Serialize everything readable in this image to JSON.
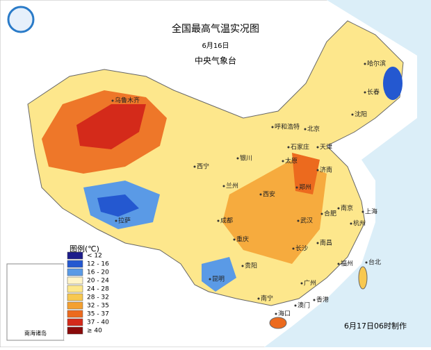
{
  "title": "全国最高气温实况图",
  "date": "6月16日",
  "source": "中央气象台",
  "legend": {
    "title": "图例(℃)",
    "items": [
      {
        "label": "< 12",
        "color": "#1c1c8a"
      },
      {
        "label": "12 - 16",
        "color": "#2458d0"
      },
      {
        "label": "16 - 20",
        "color": "#5a9ae6"
      },
      {
        "label": "20 - 24",
        "color": "#fff4c8"
      },
      {
        "label": "24 - 28",
        "color": "#fde78c"
      },
      {
        "label": "28 - 32",
        "color": "#f8c850"
      },
      {
        "label": "32 - 35",
        "color": "#f4a030"
      },
      {
        "label": "35 - 37",
        "color": "#ec6a1e"
      },
      {
        "label": "37 - 40",
        "color": "#d42a1a"
      },
      {
        "label": "≥ 40",
        "color": "#8a0a0a"
      }
    ]
  },
  "cities": [
    "乌鲁木齐",
    "哈尔滨",
    "长春",
    "沈阳",
    "呼和浩特",
    "北京",
    "天津",
    "石家庄",
    "太原",
    "济南",
    "银川",
    "西宁",
    "兰州",
    "郑州",
    "西安",
    "拉萨",
    "成都",
    "重庆",
    "武汉",
    "合肥",
    "南京",
    "上海",
    "杭州",
    "长沙",
    "南昌",
    "贵阳",
    "昆明",
    "福州",
    "广州",
    "南宁",
    "澳门",
    "香港",
    "海口",
    "台北"
  ],
  "inset_label": "南海诸岛",
  "footer": "6月17日06时制作"
}
